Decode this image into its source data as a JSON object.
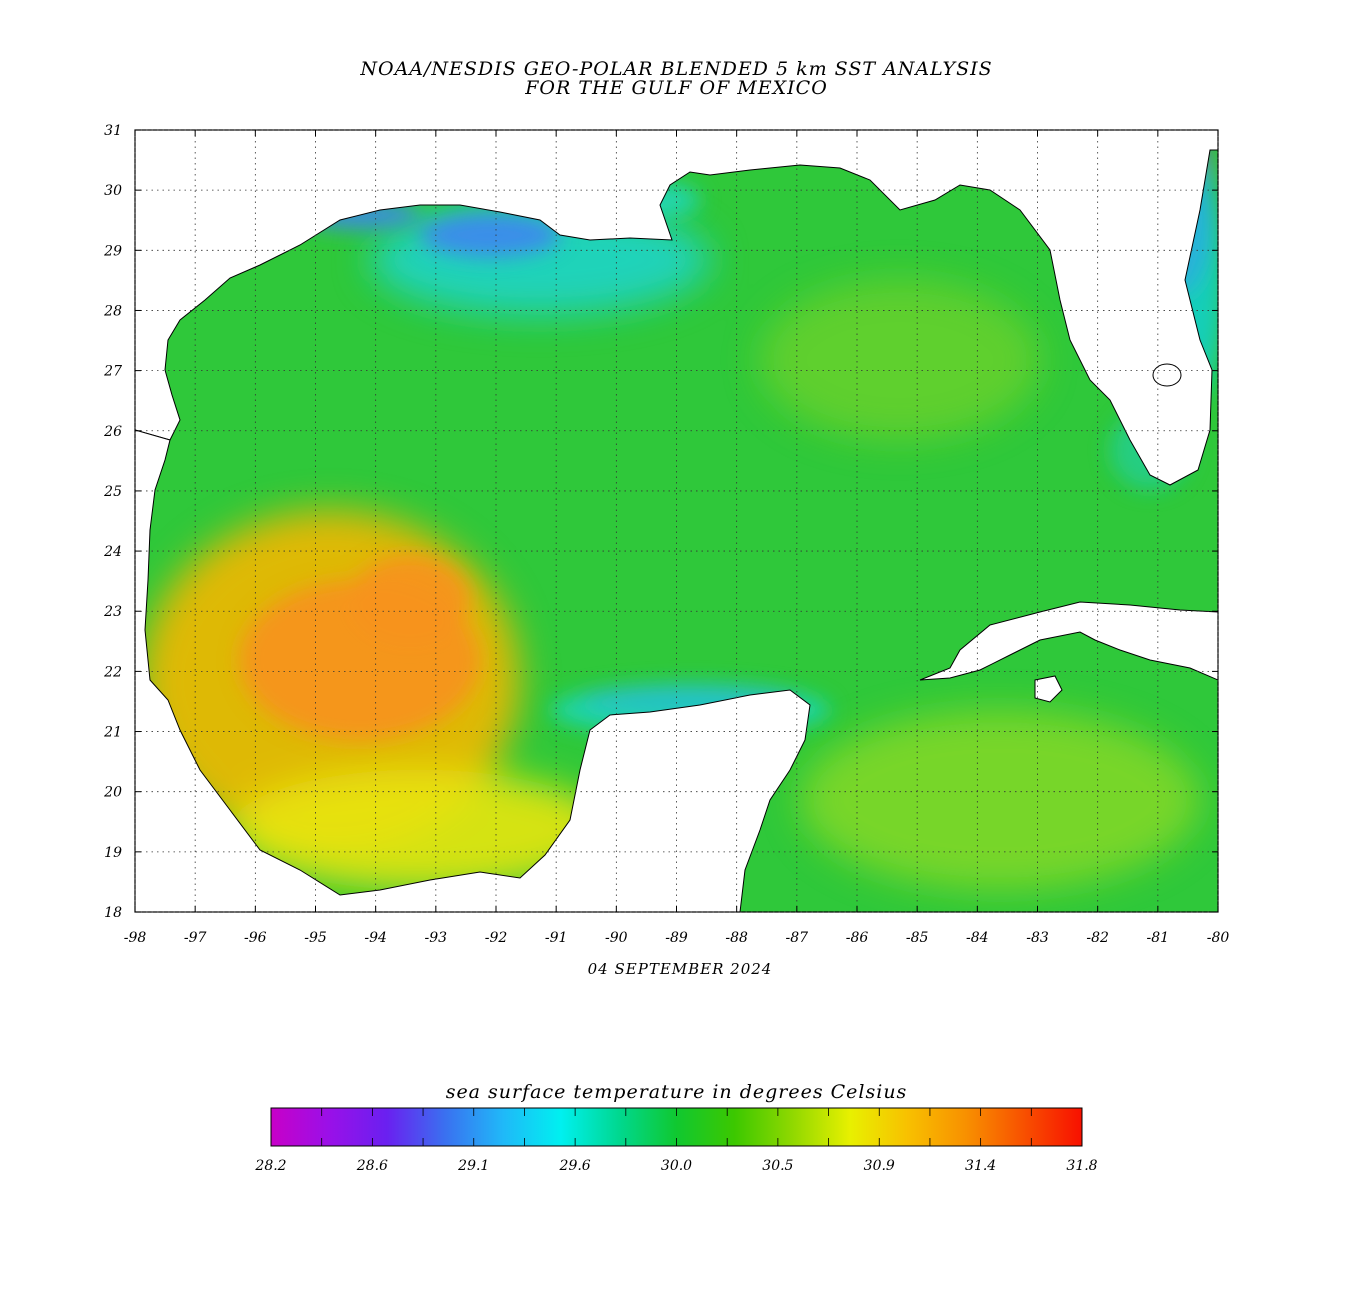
{
  "title": {
    "line1": "NOAA/NESDIS GEO-POLAR BLENDED 5 km SST ANALYSIS",
    "line2": "FOR THE GULF OF MEXICO"
  },
  "date": "04 SEPTEMBER 2024",
  "map": {
    "lon_range": [
      -98,
      -80
    ],
    "lat_range": [
      18,
      31
    ],
    "lon_ticks": [
      "-98",
      "-97",
      "-96",
      "-95",
      "-94",
      "-93",
      "-92",
      "-91",
      "-90",
      "-89",
      "-88",
      "-87",
      "-86",
      "-85",
      "-84",
      "-83",
      "-82",
      "-81",
      "-80"
    ],
    "lat_ticks": [
      "31",
      "30",
      "29",
      "28",
      "27",
      "26",
      "25",
      "24",
      "23",
      "22",
      "21",
      "20",
      "19",
      "18"
    ],
    "gridlines": "dotted",
    "ocean_base_color": "#2fc83a",
    "land_color": "#ffffff",
    "coastline_color": "#000000",
    "sst_regions": [
      {
        "name": "western-warm-pool",
        "color": "#f2b705"
      },
      {
        "name": "central-warm-core",
        "color": "#f7921c"
      },
      {
        "name": "bay-of-campeche-warm",
        "color": "#e8e612"
      },
      {
        "name": "northern-shelf-cool",
        "color": "#1ed4c8"
      },
      {
        "name": "louisiana-coast-cool",
        "color": "#3e86f0"
      },
      {
        "name": "florida-atlantic-coast-cool",
        "color": "#8a2ee8"
      },
      {
        "name": "yucatan-coast-cool",
        "color": "#5b5cf0"
      }
    ]
  },
  "colorbar": {
    "title": "sea surface temperature in degrees Celsius",
    "labels": [
      "28.2",
      "28.6",
      "29.1",
      "29.6",
      "30.0",
      "30.5",
      "30.9",
      "31.4",
      "31.8"
    ],
    "colors": [
      "#c800c8",
      "#9a10e8",
      "#6a20f0",
      "#3a70f0",
      "#20b8f8",
      "#00f0f0",
      "#00d890",
      "#10c830",
      "#3cc800",
      "#90d800",
      "#e8f000",
      "#f8c000",
      "#f89000",
      "#f85000",
      "#f81000"
    ]
  }
}
